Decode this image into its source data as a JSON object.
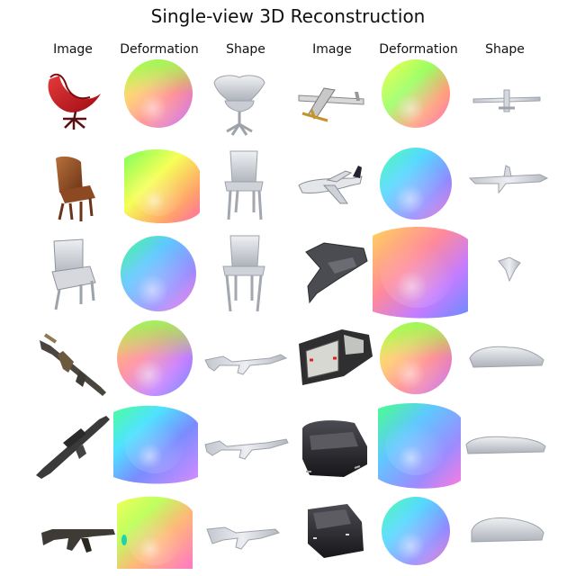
{
  "title": "Single-view 3D Reconstruction",
  "columns": {
    "left_image": "Image",
    "left_deformation": "Deformation",
    "left_shape": "Shape",
    "right_image": "Image",
    "right_deformation": "Deformation",
    "right_shape": "Shape"
  },
  "rows_left": [
    {
      "object": "red-swivel-chair"
    },
    {
      "object": "brown-leather-chair"
    },
    {
      "object": "gray-chair"
    },
    {
      "object": "assault-rifle"
    },
    {
      "object": "sniper-rifle"
    },
    {
      "object": "ak-rifle"
    }
  ],
  "rows_right": [
    {
      "object": "propeller-plane"
    },
    {
      "object": "airliner"
    },
    {
      "object": "stealth-jet"
    },
    {
      "object": "pickup-truck"
    },
    {
      "object": "black-sedan"
    },
    {
      "object": "black-suv"
    }
  ],
  "colors": {
    "background": "#ffffff",
    "mesh_gray": "#d7d9de",
    "mesh_shadow": "#a9adb6",
    "chair_red": "#c3121b",
    "leather_brown": "#8a4a24",
    "gun_dark": "#3e3a35",
    "car_black": "#2b2b2f"
  }
}
